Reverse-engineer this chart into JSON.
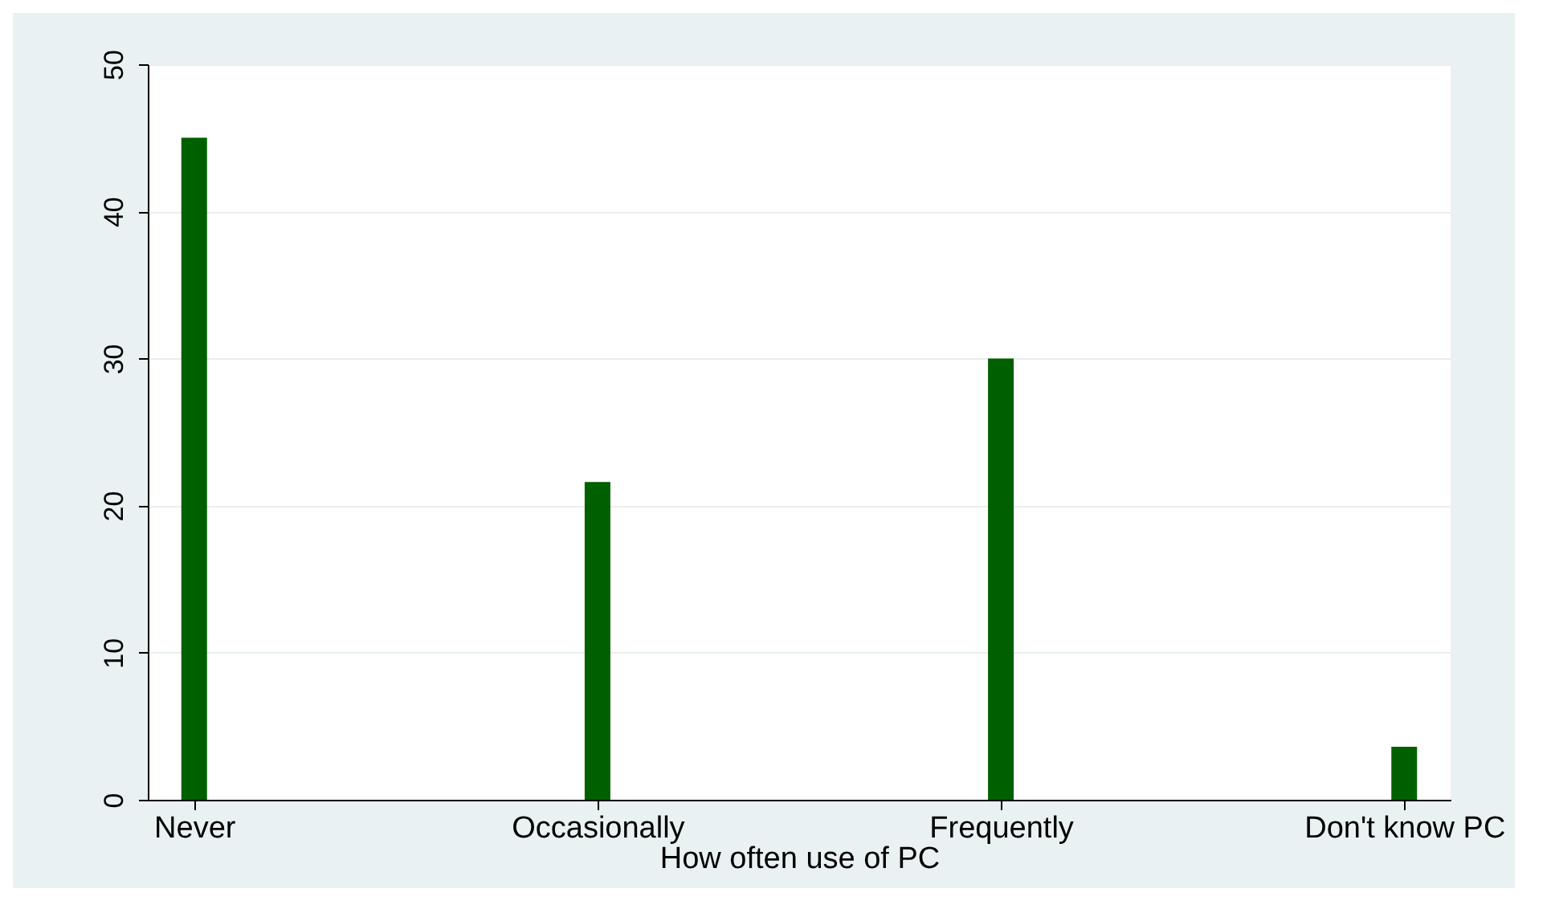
{
  "chart_data": {
    "type": "bar",
    "xlabel": "How often use of PC",
    "categories": [
      "Never",
      "Occasionally",
      "Frequently",
      "Don't know PC"
    ],
    "values": [
      45,
      21.6,
      30,
      3.6
    ],
    "color": "#006000",
    "ylim": [
      0,
      50
    ],
    "yticks": [
      0,
      10,
      20,
      30,
      40,
      50
    ],
    "grid": "y"
  }
}
